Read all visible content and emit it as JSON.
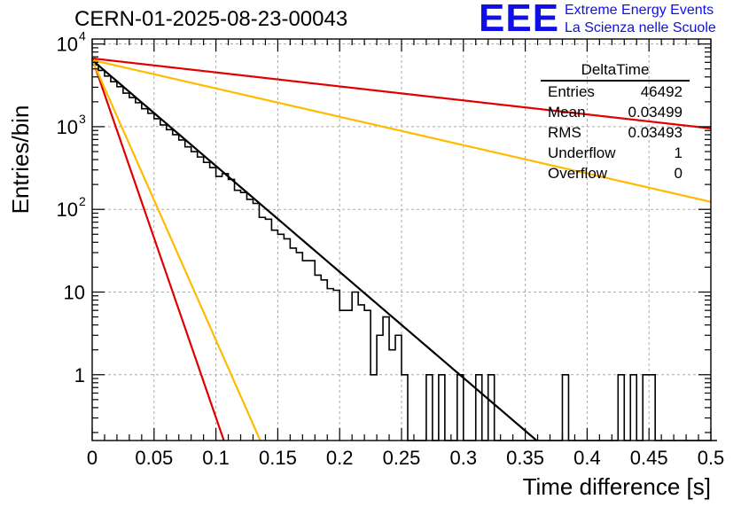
{
  "header": {
    "title": "CERN-01-2025-08-23-00043",
    "logo_mark": "EEE",
    "logo_line1": "Extreme Energy Events",
    "logo_line2": "La Scienza nelle Scuole"
  },
  "stats": {
    "name": "DeltaTime",
    "rows": [
      {
        "label": "Entries",
        "value": "46492"
      },
      {
        "label": "Mean",
        "value": "0.03499"
      },
      {
        "label": "RMS",
        "value": "0.03493"
      },
      {
        "label": "Underflow",
        "value": "1"
      },
      {
        "label": "Overflow",
        "value": "0"
      }
    ]
  },
  "chart_data": {
    "type": "line",
    "xlabel": "Time difference [s]",
    "ylabel": "Entries/bin",
    "xlim": [
      0,
      0.5
    ],
    "ylim": [
      0.16,
      11500
    ],
    "log_y": true,
    "grid": true,
    "x_ticks": [
      "0",
      "0.05",
      "0.1",
      "0.15",
      "0.2",
      "0.25",
      "0.3",
      "0.35",
      "0.4",
      "0.45",
      "0.5"
    ],
    "y_ticks": [
      {
        "value": 1,
        "label": "1"
      },
      {
        "value": 10,
        "label": "10"
      },
      {
        "value": 100,
        "label": "10",
        "exp": "2"
      },
      {
        "value": 1000,
        "label": "10",
        "exp": "3"
      },
      {
        "value": 10000,
        "label": "10",
        "exp": "4"
      }
    ],
    "histogram": {
      "bin_width": 0.005,
      "counts": [
        5600,
        4800,
        4100,
        3500,
        3050,
        2550,
        2250,
        1950,
        1650,
        1450,
        1250,
        1050,
        920,
        800,
        690,
        570,
        500,
        430,
        370,
        320,
        250,
        270,
        230,
        170,
        160,
        132,
        118,
        80,
        76,
        56,
        50,
        44,
        34,
        30,
        24,
        24,
        16,
        14,
        11,
        10.5,
        6,
        6,
        10,
        7,
        6,
        1,
        3,
        5,
        2,
        3,
        1,
        0,
        0,
        0,
        1,
        0,
        1,
        0,
        0,
        1,
        0,
        0,
        1,
        0,
        1,
        0,
        0,
        0,
        0,
        0,
        0,
        0,
        0,
        0,
        0,
        0,
        1,
        0,
        0,
        0,
        0,
        0,
        0,
        0,
        0,
        1,
        0,
        1,
        0,
        1,
        1,
        0,
        0,
        0,
        0,
        0,
        0,
        0,
        0,
        0,
        0
      ],
      "color": "#000000"
    },
    "fits": [
      {
        "color": "#000000",
        "y0": 6400,
        "slope_per_s": -29.5
      },
      {
        "color": "#e00000",
        "y0": 6700,
        "slope_per_s": -3.9
      },
      {
        "color": "#ffbb00",
        "y0": 6400,
        "slope_per_s": -7.9
      },
      {
        "color": "#e00000",
        "y0": 6700,
        "slope_per_s": -100
      },
      {
        "color": "#ffbb00",
        "y0": 6400,
        "slope_per_s": -78
      }
    ]
  }
}
